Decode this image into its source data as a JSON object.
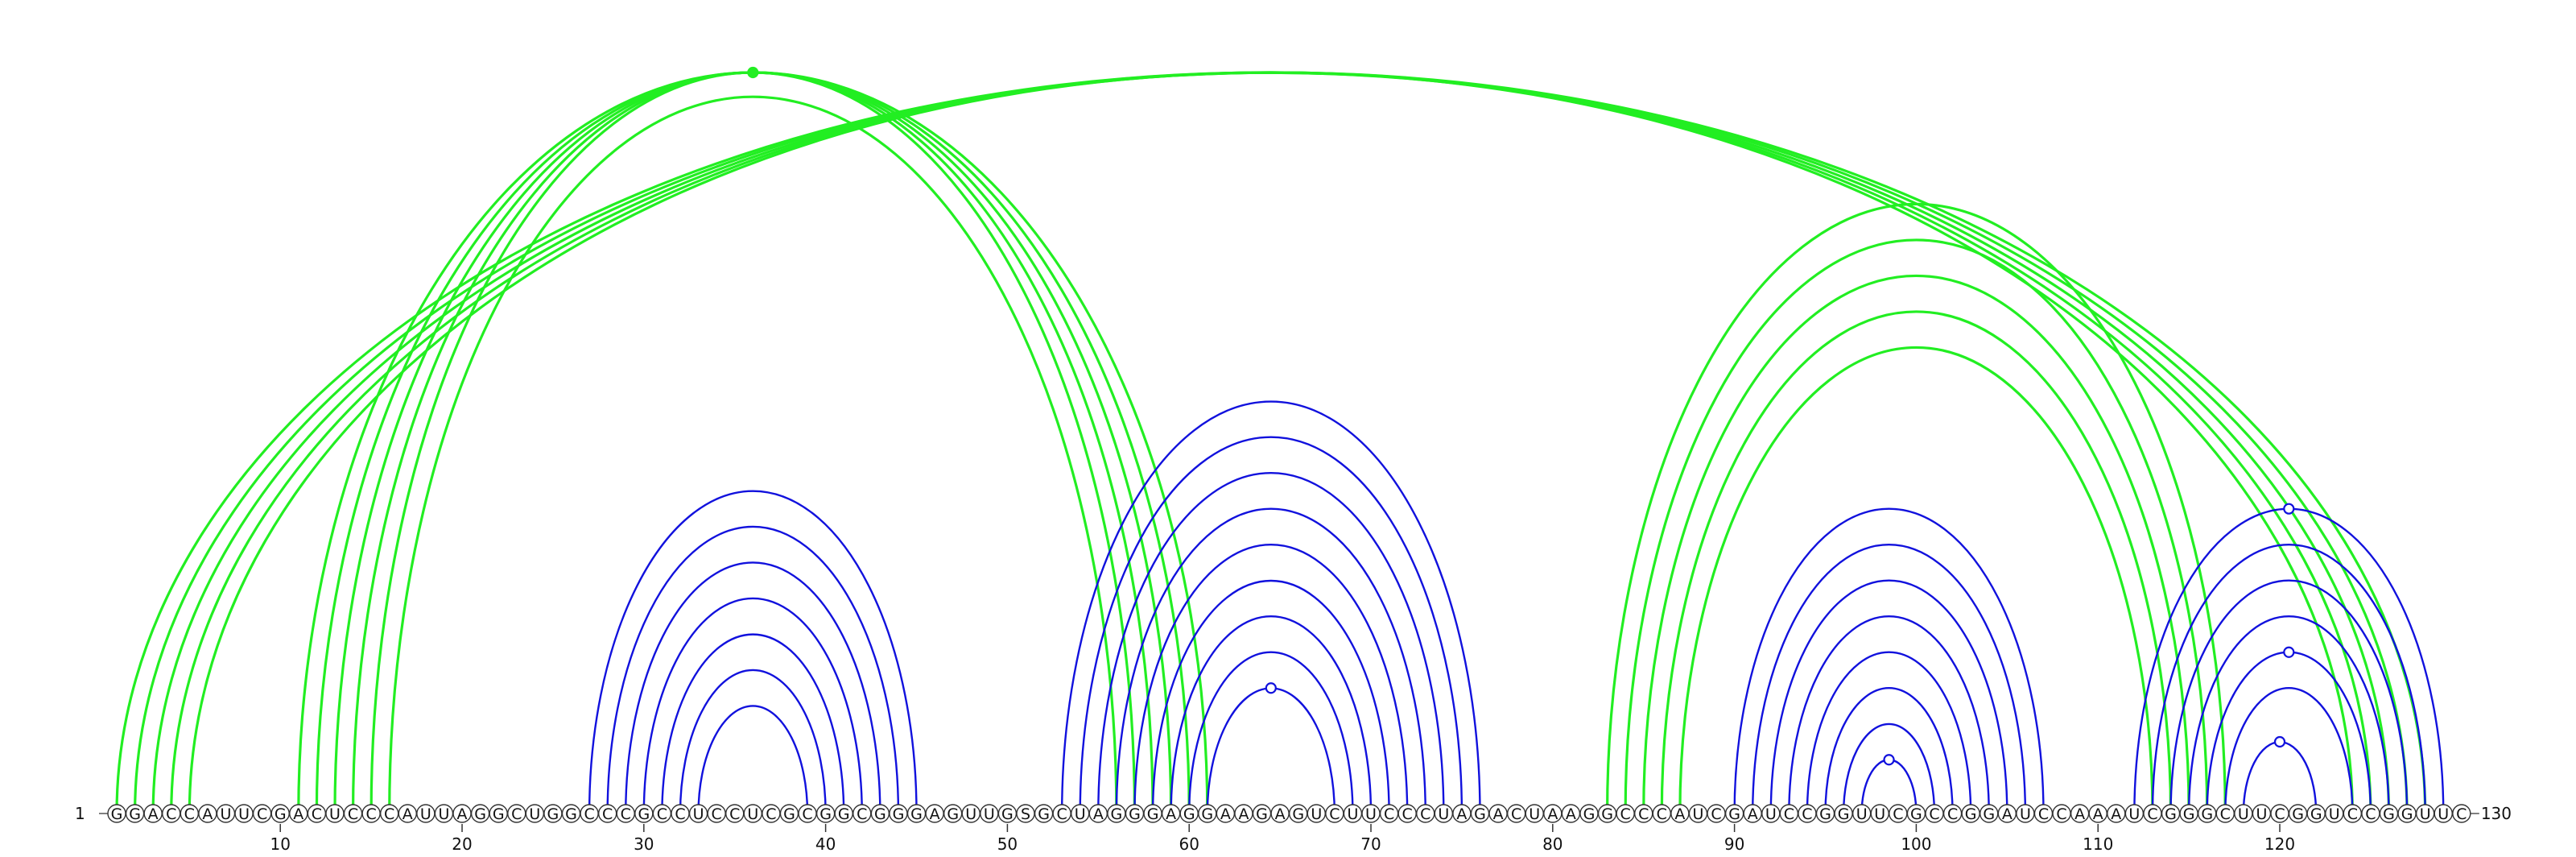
{
  "diagram": {
    "sequence": "GGACCAUUCGACUCCCAUUAGGCUGGCCCGCCUCCUCGCGGCGGGAGUUGSGCUAGGGAGGAAGAGUCUUCCCUAGACUAAGGCCCAUCGAUCCGGUUCGCCGGAUCCAAAUCGGGCUUCGGUCCGGUUC",
    "start_label": "1",
    "end_label": "130",
    "tick_labels": [
      "10",
      "20",
      "30",
      "40",
      "50",
      "60",
      "70",
      "80",
      "90",
      "100",
      "110",
      "120"
    ],
    "colors": {
      "green": "#22ee22",
      "blue": "#1111dd",
      "nucleotide_outline": "#333333"
    },
    "helices": [
      {
        "color": "green",
        "pairs": [
          [
            1,
            128
          ],
          [
            2,
            127
          ],
          [
            3,
            126
          ],
          [
            4,
            125
          ],
          [
            5,
            124
          ]
        ]
      },
      {
        "color": "green",
        "pairs": [
          [
            11,
            61
          ],
          [
            12,
            60
          ],
          [
            13,
            59
          ],
          [
            14,
            58
          ],
          [
            15,
            57
          ],
          [
            16,
            56
          ]
        ]
      },
      {
        "color": "blue",
        "pairs": [
          [
            27,
            45
          ],
          [
            28,
            44
          ],
          [
            29,
            43
          ],
          [
            30,
            42
          ],
          [
            31,
            41
          ],
          [
            32,
            40
          ],
          [
            33,
            39
          ]
        ]
      },
      {
        "color": "blue",
        "pairs": [
          [
            53,
            76
          ],
          [
            54,
            75
          ],
          [
            55,
            74
          ],
          [
            56,
            73
          ],
          [
            57,
            72
          ],
          [
            58,
            71
          ],
          [
            59,
            70
          ],
          [
            60,
            69
          ],
          [
            61,
            68
          ]
        ]
      },
      {
        "color": "green",
        "pairs": [
          [
            83,
            117
          ],
          [
            84,
            116
          ],
          [
            85,
            115
          ],
          [
            86,
            114
          ],
          [
            87,
            113
          ]
        ]
      },
      {
        "color": "blue",
        "pairs": [
          [
            90,
            107
          ],
          [
            91,
            106
          ],
          [
            92,
            105
          ],
          [
            93,
            104
          ],
          [
            94,
            103
          ],
          [
            95,
            102
          ],
          [
            96,
            101
          ],
          [
            97,
            100
          ]
        ]
      },
      {
        "color": "blue",
        "pairs": [
          [
            112,
            129
          ],
          [
            113,
            128
          ],
          [
            114,
            127
          ],
          [
            115,
            126
          ],
          [
            116,
            125
          ],
          [
            117,
            124
          ],
          [
            118,
            122
          ]
        ]
      }
    ],
    "markers": [
      {
        "color": "green",
        "filled": true,
        "pair": [
          11,
          61
        ]
      },
      {
        "color": "blue",
        "filled": false,
        "pair": [
          61,
          68
        ]
      },
      {
        "color": "blue",
        "filled": false,
        "pair": [
          97,
          100
        ]
      },
      {
        "color": "blue",
        "filled": false,
        "pair": [
          118,
          122
        ]
      },
      {
        "color": "blue",
        "filled": false,
        "pair": [
          116,
          125
        ]
      },
      {
        "color": "blue",
        "filled": false,
        "pair": [
          112,
          129
        ]
      }
    ]
  }
}
